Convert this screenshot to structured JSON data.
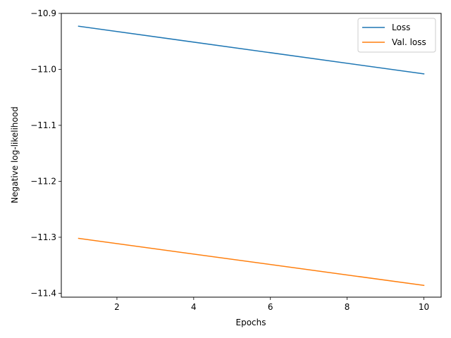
{
  "chart_data": {
    "type": "line",
    "xlabel": "Epochs",
    "ylabel": "Negative log-likelihood",
    "xlim": [
      0.55,
      10.45
    ],
    "ylim": [
      -11.407,
      -10.9
    ],
    "xticks": [
      2,
      4,
      6,
      8,
      10
    ],
    "yticks": [
      -10.9,
      -11.0,
      -11.1,
      -11.2,
      -11.3,
      -11.4
    ],
    "x": [
      1,
      10
    ],
    "series": [
      {
        "name": "Loss",
        "color": "#1f77b4",
        "values": [
          -10.923,
          -11.008
        ]
      },
      {
        "name": "Val. loss",
        "color": "#ff7f0e",
        "values": [
          -11.302,
          -11.386
        ]
      }
    ],
    "legend": "top-right",
    "grid": false
  }
}
